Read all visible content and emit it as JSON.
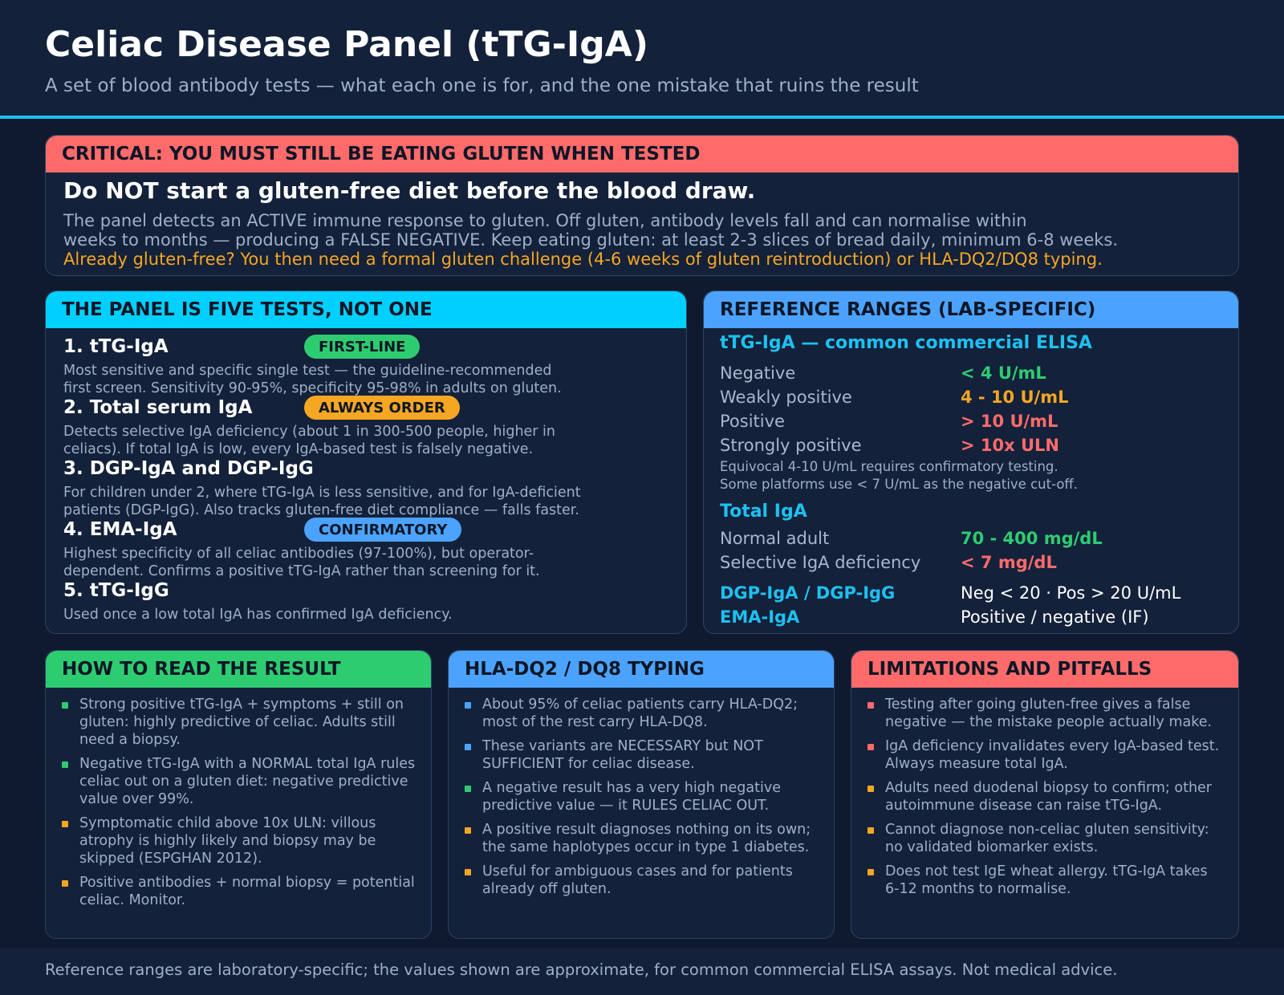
{
  "header": {
    "title": "Celiac Disease Panel (tTG-IgA)",
    "subtitle": "A set of blood antibody tests — what each one is for, and the one mistake that ruins the result"
  },
  "critical": {
    "heading": "CRITICAL: YOU MUST STILL BE EATING GLUTEN WHEN TESTED",
    "lead": "Do NOT start a gluten-free diet before the blood draw.",
    "line1": "The panel detects an ACTIVE immune response to gluten. Off gluten, antibody levels fall and can normalise within",
    "line2": "weeks to months — producing a FALSE NEGATIVE. Keep eating gluten: at least 2-3 slices of bread daily, minimum 6-8 weeks.",
    "line3": "Already gluten-free? You then need a formal gluten challenge (4-6 weeks of gluten reintroduction) or HLA-DQ2/DQ8 typing."
  },
  "tests": {
    "heading": "THE PANEL IS FIVE TESTS, NOT ONE",
    "items": [
      {
        "title": "1. tTG-IgA",
        "badge": "FIRST-LINE",
        "badge_color": "#2ecc71",
        "desc1": "Most sensitive and specific single test — the guideline-recommended",
        "desc2": "first screen. Sensitivity 90-95%, specificity 95-98% in adults on gluten."
      },
      {
        "title": "2. Total serum IgA",
        "badge": "ALWAYS ORDER",
        "badge_color": "#f5a623",
        "desc1": "Detects selective IgA deficiency (about 1 in 300-500 people, higher in",
        "desc2": "celiacs). If total IgA is low, every IgA-based test is falsely negative."
      },
      {
        "title": "3. DGP-IgA and DGP-IgG",
        "badge": "",
        "badge_color": "",
        "desc1": "For children under 2, where tTG-IgA is less sensitive, and for IgA-deficient",
        "desc2": "patients (DGP-IgG). Also tracks gluten-free diet compliance — falls faster."
      },
      {
        "title": "4. EMA-IgA",
        "badge": "CONFIRMATORY",
        "badge_color": "#4ca3ff",
        "desc1": "Highest specificity of all celiac antibodies (97-100%), but operator-",
        "desc2": "dependent. Confirms a positive tTG-IgA rather than screening for it."
      },
      {
        "title": "5. tTG-IgG",
        "badge": "",
        "badge_color": "",
        "desc1": "Used once a low total IgA has confirmed IgA deficiency.",
        "desc2": ""
      }
    ]
  },
  "ranges": {
    "heading": "REFERENCE RANGES (LAB-SPECIFIC)",
    "ttg_title": "tTG-IgA — common commercial ELISA",
    "ttg_rows": [
      {
        "label": "Negative",
        "value": "< 4 U/mL",
        "color": "#2ecc71"
      },
      {
        "label": "Weakly positive",
        "value": "4 - 10 U/mL",
        "color": "#f5a623"
      },
      {
        "label": "Positive",
        "value": "> 10 U/mL",
        "color": "#ff6b6b"
      },
      {
        "label": "Strongly positive",
        "value": "> 10x ULN",
        "color": "#ff6b6b"
      }
    ],
    "note1": "Equivocal 4-10 U/mL requires confirmatory testing.",
    "note2": "Some platforms use < 7 U/mL as the negative cut-off.",
    "iga_title": "Total IgA",
    "iga_rows": [
      {
        "label": "Normal adult",
        "value": "70 - 400 mg/dL",
        "color": "#2ecc71"
      },
      {
        "label": "Selective IgA deficiency",
        "value": "< 7 mg/dL",
        "color": "#ff6b6b"
      }
    ],
    "dgp_label": "DGP-IgA / DGP-IgG",
    "dgp_value": "Neg < 20 · Pos > 20 U/mL",
    "ema_label": "EMA-IgA",
    "ema_value": "Positive / negative (IF)"
  },
  "read": {
    "heading": "HOW TO READ THE RESULT",
    "items": [
      {
        "text": "Strong positive tTG-IgA + symptoms + still on gluten: highly predictive of celiac. Adults still need a biopsy.",
        "color": "#2ecc71"
      },
      {
        "text": "Negative tTG-IgA with a NORMAL total IgA rules celiac out on a gluten diet: negative predictive value over 99%.",
        "color": "#2ecc71"
      },
      {
        "text": "Symptomatic child above 10x ULN: villous atrophy is highly likely and biopsy may be skipped (ESPGHAN 2012).",
        "color": "#f5a623"
      },
      {
        "text": "Positive antibodies + normal biopsy = potential celiac. Monitor.",
        "color": "#f5a623"
      }
    ]
  },
  "hla": {
    "heading": "HLA-DQ2 / DQ8 TYPING",
    "items": [
      {
        "text": "About 95% of celiac patients carry HLA-DQ2; most of the rest carry HLA-DQ8.",
        "color": "#4ca3ff"
      },
      {
        "text": "These variants are NECESSARY but NOT SUFFICIENT for celiac disease.",
        "color": "#4ca3ff"
      },
      {
        "text": "A negative result has a very high negative predictive value — it RULES CELIAC OUT.",
        "color": "#2ecc71"
      },
      {
        "text": "A positive result diagnoses nothing on its own; the same haplotypes occur in type 1 diabetes.",
        "color": "#f5a623"
      },
      {
        "text": "Useful for ambiguous cases and for patients already off gluten.",
        "color": "#f5a623"
      }
    ]
  },
  "limits": {
    "heading": "LIMITATIONS AND PITFALLS",
    "items": [
      {
        "text": "Testing after going gluten-free gives a false negative — the mistake people actually make.",
        "color": "#ff6b6b"
      },
      {
        "text": "IgA deficiency invalidates every IgA-based test. Always measure total IgA.",
        "color": "#ff6b6b"
      },
      {
        "text": "Adults need duodenal biopsy to confirm; other autoimmune disease can raise tTG-IgA.",
        "color": "#f5a623"
      },
      {
        "text": "Cannot diagnose non-celiac gluten sensitivity: no validated biomarker exists.",
        "color": "#f5a623"
      },
      {
        "text": "Does not test IgE wheat allergy. tTG-IgA takes 6-12 months to normalise.",
        "color": "#f5a623"
      }
    ]
  },
  "footer": {
    "text": "Reference ranges are laboratory-specific; the values shown are approximate, for common commercial ELISA assays. Not medical advice."
  }
}
